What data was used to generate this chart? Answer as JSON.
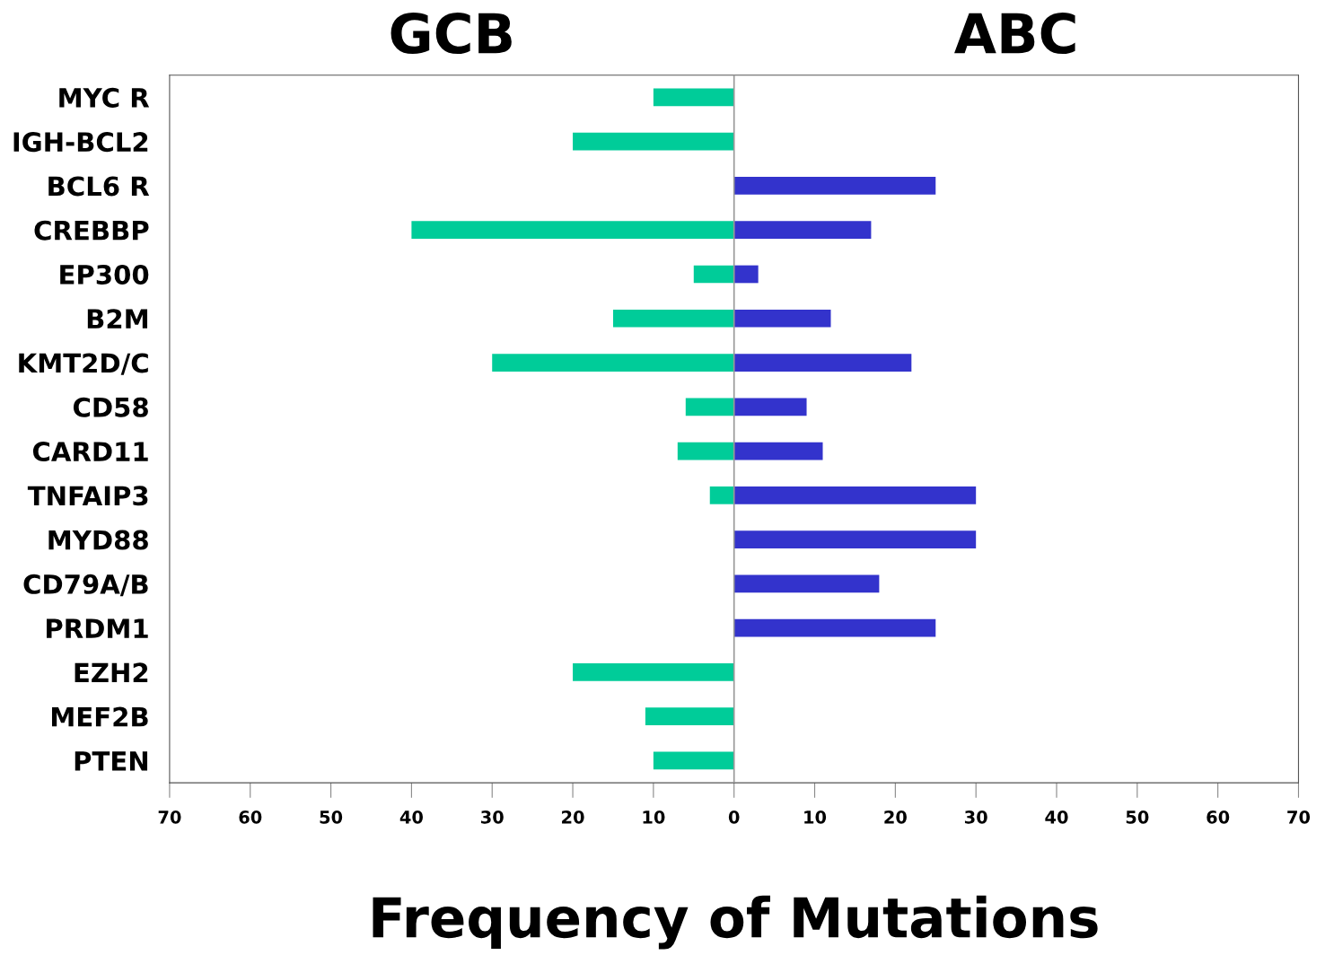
{
  "chart_data": {
    "type": "bar",
    "orientation": "horizontal",
    "xlabel": "Frequency of Mutations",
    "categories": [
      "MYC R",
      "IGH-BCL2",
      "BCL6 R",
      "CREBBP",
      "EP300",
      "B2M",
      "KMT2D/C",
      "CD58",
      "CARD11",
      "TNFAIP3",
      "MYD88",
      "CD79A/B",
      "PRDM1",
      "EZH2",
      "MEF2B",
      "PTEN"
    ],
    "series": [
      {
        "name": "GCB",
        "color": "#00cc99",
        "values": [
          -10,
          -20,
          null,
          -40,
          -5,
          -15,
          -30,
          -6,
          -7,
          -3,
          null,
          null,
          null,
          -20,
          -11,
          -10
        ]
      },
      {
        "name": "ABC",
        "color": "#3333cc",
        "values": [
          null,
          null,
          25,
          17,
          3,
          12,
          22,
          9,
          11,
          30,
          30,
          18,
          25,
          null,
          null,
          null
        ]
      }
    ],
    "xlim": [
      -70,
      70
    ],
    "xticks": [
      {
        "value": -70,
        "label": "70"
      },
      {
        "value": -60,
        "label": "60"
      },
      {
        "value": -50,
        "label": "50"
      },
      {
        "value": -40,
        "label": "40"
      },
      {
        "value": -30,
        "label": "30"
      },
      {
        "value": -20,
        "label": "20"
      },
      {
        "value": -10,
        "label": "10"
      },
      0,
      10,
      20,
      30,
      40,
      50,
      60,
      70
    ],
    "ref_lines": [
      {
        "axis": "x",
        "value": 0,
        "color": "#999999"
      }
    ],
    "grid": false,
    "legend": false
  }
}
